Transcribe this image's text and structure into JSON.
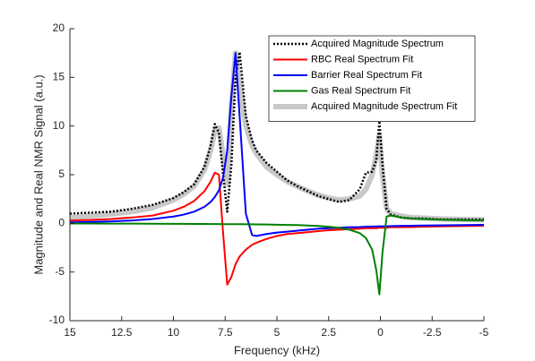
{
  "chart_data": {
    "type": "line",
    "xlabel": "Frequency (kHz)",
    "ylabel": "Magnitude and Real NMR Signal (a.u.)",
    "x": [
      15,
      14,
      13,
      12,
      11,
      10,
      9.5,
      9,
      8.5,
      8.2,
      8,
      7.8,
      7.6,
      7.4,
      7.2,
      7.0,
      6.8,
      6.5,
      6.2,
      6,
      5.5,
      5,
      4.5,
      4,
      3.5,
      3,
      2.5,
      2,
      1.5,
      1,
      0.7,
      0.4,
      0.2,
      0.05,
      -0.1,
      -0.3,
      -0.5,
      -1,
      -1.5,
      -2,
      -3,
      -4,
      -5
    ],
    "series": [
      {
        "name": "Acquired Magnitude Spectrum",
        "color": "#000000",
        "linestyle": "dotted",
        "values": [
          1,
          1.1,
          1.2,
          1.5,
          1.9,
          2.6,
          3.2,
          4.0,
          5.8,
          8,
          10.2,
          9.3,
          5,
          1.2,
          6,
          15,
          17.6,
          11,
          8.5,
          7.5,
          6.2,
          5.3,
          4.4,
          3.8,
          3.3,
          2.8,
          2.5,
          2.2,
          2.4,
          3.5,
          5.2,
          5.3,
          6.5,
          10.5,
          6,
          1.5,
          0.9,
          0.6,
          0.5,
          0.5,
          0.4,
          0.4,
          0.4
        ]
      },
      {
        "name": "RBC Real Spectrum Fit",
        "color": "#ff0000",
        "linestyle": "solid",
        "values": [
          0.3,
          0.35,
          0.45,
          0.6,
          0.8,
          1.3,
          1.7,
          2.3,
          3.3,
          4.3,
          5.2,
          5.0,
          -1,
          -6.3,
          -5.5,
          -4.2,
          -3.4,
          -2.7,
          -2.2,
          -2.0,
          -1.6,
          -1.3,
          -1.1,
          -1.0,
          -0.9,
          -0.8,
          -0.7,
          -0.65,
          -0.6,
          -0.55,
          -0.5,
          -0.5,
          -0.5,
          -0.45,
          -0.45,
          -0.45,
          -0.4,
          -0.4,
          -0.38,
          -0.35,
          -0.3,
          -0.28,
          -0.25
        ]
      },
      {
        "name": "Barrier Real Spectrum Fit",
        "color": "#0000ff",
        "linestyle": "solid",
        "values": [
          0.1,
          0.15,
          0.2,
          0.3,
          0.45,
          0.7,
          0.9,
          1.2,
          1.7,
          2.2,
          2.7,
          3.4,
          4.7,
          7.5,
          13,
          17.5,
          11,
          1,
          -1.2,
          -1.3,
          -1.1,
          -0.95,
          -0.85,
          -0.75,
          -0.65,
          -0.55,
          -0.5,
          -0.45,
          -0.4,
          -0.38,
          -0.35,
          -0.33,
          -0.32,
          -0.3,
          -0.3,
          -0.3,
          -0.28,
          -0.26,
          -0.24,
          -0.22,
          -0.2,
          -0.18,
          -0.15
        ]
      },
      {
        "name": "Gas Real Spectrum Fit",
        "color": "#008000",
        "linestyle": "solid",
        "values": [
          -0.02,
          -0.02,
          -0.03,
          -0.03,
          -0.04,
          -0.05,
          -0.05,
          -0.06,
          -0.06,
          -0.07,
          -0.07,
          -0.07,
          -0.08,
          -0.08,
          -0.08,
          -0.09,
          -0.09,
          -0.1,
          -0.1,
          -0.11,
          -0.12,
          -0.14,
          -0.16,
          -0.18,
          -0.22,
          -0.27,
          -0.35,
          -0.45,
          -0.65,
          -1.0,
          -1.5,
          -2.7,
          -4.8,
          -7.3,
          -3,
          0.7,
          0.8,
          0.6,
          0.5,
          0.45,
          0.38,
          0.33,
          0.3
        ]
      },
      {
        "name": "Acquired Magnitude Spectrum Fit",
        "color": "#c8c8c8",
        "linestyle": "thick",
        "values": [
          0.6,
          0.75,
          0.95,
          1.2,
          1.6,
          2.4,
          3.0,
          3.8,
          5.5,
          7.5,
          9.5,
          9.8,
          7,
          4,
          12,
          17.5,
          14,
          10,
          8,
          7.2,
          5.8,
          5,
          4.3,
          3.8,
          3.3,
          2.9,
          2.6,
          2.4,
          2.5,
          2.8,
          3.5,
          5,
          7,
          9.0,
          5,
          1.5,
          1,
          0.75,
          0.6,
          0.55,
          0.45,
          0.4,
          0.35
        ]
      }
    ],
    "xlim": [
      15,
      -5
    ],
    "xticks": [
      15,
      12.5,
      10,
      7.5,
      5,
      2.5,
      0,
      -2.5,
      -5
    ],
    "ylim": [
      -10,
      20
    ],
    "yticks": [
      -10,
      -5,
      0,
      5,
      10,
      15,
      20
    ],
    "legend": "upper right"
  }
}
